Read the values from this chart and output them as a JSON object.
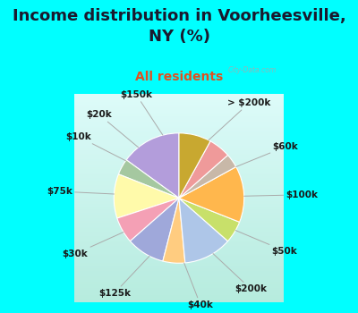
{
  "title": "Income distribution in Voorheesville,\nNY (%)",
  "subtitle": "All residents",
  "cyan_bg": "#00FFFF",
  "chart_bg": "#d4eee8",
  "watermark": "City-Data.com",
  "labels": [
    "> $200k",
    "$60k",
    "$100k",
    "$50k",
    "$200k",
    "$40k",
    "$125k",
    "$30k",
    "$75k",
    "$10k",
    "$20k",
    "$150k"
  ],
  "values": [
    15.0,
    4.0,
    11.0,
    6.5,
    9.5,
    5.5,
    12.0,
    5.5,
    14.0,
    3.5,
    5.5,
    8.0
  ],
  "colors": [
    "#b39ddb",
    "#a5c8a0",
    "#fffaaa",
    "#f4a0b5",
    "#9fa8da",
    "#ffcc80",
    "#aec6e8",
    "#c8e06a",
    "#ffb74d",
    "#c8b8a8",
    "#ef9a9a",
    "#c8a830"
  ],
  "startangle": 90,
  "label_fontsize": 7.5,
  "title_fontsize": 13,
  "subtitle_fontsize": 10,
  "subtitle_color": "#e05020",
  "border_width": 12
}
